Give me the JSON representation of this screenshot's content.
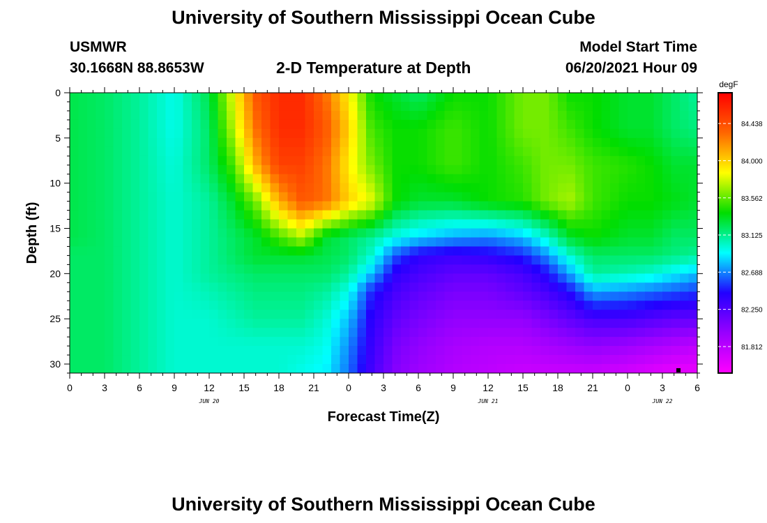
{
  "page": {
    "title_top": "University of Southern Mississippi Ocean Cube",
    "title_bottom": "University of Southern Mississippi Ocean Cube",
    "station": "USMWR",
    "coords": "30.1668N  88.8653W",
    "plot_title": "2-D Temperature at Depth",
    "model_label": "Model Start Time",
    "model_time": "06/20/2021 Hour 09"
  },
  "chart_data": {
    "type": "heatmap",
    "xlabel": "Forecast Time(Z)",
    "ylabel": "Depth (ft)",
    "unit": "degF",
    "x_range_hours": [
      0,
      54
    ],
    "y_range_ft": [
      0,
      31
    ],
    "y_reversed": true,
    "x_tick_labels": [
      "0",
      "3",
      "6",
      "9",
      "12",
      "15",
      "18",
      "21",
      "0",
      "3",
      "6",
      "9",
      "12",
      "15",
      "18",
      "21",
      "0",
      "3",
      "6"
    ],
    "y_ticks": [
      0,
      5,
      10,
      15,
      20,
      25,
      30
    ],
    "date_labels": [
      {
        "text": "JUN 20",
        "hour": 12
      },
      {
        "text": "JUN 21",
        "hour": 36
      },
      {
        "text": "JUN 22",
        "hour": 51
      }
    ],
    "colorbar": {
      "min": 81.5,
      "max": 84.8,
      "labels": [
        84.438,
        84.0,
        83.562,
        83.125,
        82.688,
        82.25,
        81.812
      ],
      "colors": [
        "#ff00ff",
        "#9900ff",
        "#2200ff",
        "#00ffff",
        "#00dd00",
        "#ffff00",
        "#ff6600",
        "#ff0000"
      ]
    },
    "depths_ft": [
      0,
      4,
      8,
      12,
      16,
      18,
      20,
      22,
      25,
      28,
      31
    ],
    "times_hr": [
      0,
      3,
      6,
      9,
      12,
      14,
      16,
      18,
      20,
      22,
      24,
      26,
      28,
      30,
      33,
      36,
      39,
      41,
      43,
      45,
      48,
      50,
      52,
      54
    ],
    "values": [
      [
        83.25,
        83.2,
        83.1,
        82.95,
        83.25,
        83.8,
        84.4,
        84.6,
        84.6,
        84.3,
        83.9,
        83.4,
        83.3,
        83.2,
        83.4,
        83.4,
        83.6,
        83.6,
        83.4,
        83.4,
        83.3,
        83.3,
        83.2,
        83.1
      ],
      [
        83.25,
        83.2,
        83.1,
        82.95,
        83.2,
        83.7,
        84.3,
        84.6,
        84.6,
        84.4,
        84.0,
        83.5,
        83.4,
        83.4,
        83.5,
        83.4,
        83.6,
        83.6,
        83.5,
        83.4,
        83.3,
        83.3,
        83.2,
        83.15
      ],
      [
        83.25,
        83.2,
        83.1,
        82.98,
        83.2,
        83.5,
        84.1,
        84.5,
        84.5,
        84.3,
        83.9,
        83.6,
        83.4,
        83.4,
        83.5,
        83.4,
        83.5,
        83.6,
        83.6,
        83.5,
        83.45,
        83.4,
        83.3,
        83.3
      ],
      [
        83.25,
        83.2,
        83.1,
        83.0,
        83.1,
        83.3,
        83.6,
        84.1,
        84.4,
        84.3,
        84.0,
        83.8,
        83.4,
        83.3,
        83.3,
        83.4,
        83.45,
        83.6,
        83.7,
        83.5,
        83.4,
        83.4,
        83.35,
        83.3
      ],
      [
        83.25,
        83.2,
        83.1,
        83.0,
        83.1,
        83.2,
        83.3,
        83.5,
        83.7,
        83.3,
        83.2,
        83.1,
        82.95,
        82.85,
        82.75,
        82.7,
        82.8,
        83.0,
        83.3,
        83.4,
        83.3,
        83.3,
        83.2,
        83.2
      ],
      [
        83.2,
        83.2,
        83.1,
        83.0,
        83.1,
        83.2,
        83.3,
        83.3,
        83.3,
        83.25,
        83.2,
        83.0,
        82.6,
        82.4,
        82.35,
        82.4,
        82.5,
        82.7,
        83.0,
        83.2,
        83.2,
        83.2,
        83.15,
        83.1
      ],
      [
        83.2,
        83.2,
        83.1,
        83.0,
        83.1,
        83.15,
        83.2,
        83.2,
        83.2,
        83.2,
        83.1,
        82.8,
        82.4,
        82.3,
        82.2,
        82.2,
        82.3,
        82.45,
        82.75,
        83.1,
        83.05,
        83.0,
        82.9,
        82.8
      ],
      [
        83.2,
        83.2,
        83.1,
        83.0,
        83.05,
        83.1,
        83.15,
        83.15,
        83.15,
        83.1,
        82.95,
        82.5,
        82.3,
        82.2,
        82.1,
        82.1,
        82.2,
        82.3,
        82.45,
        82.75,
        82.7,
        82.65,
        82.6,
        82.55
      ],
      [
        83.2,
        83.2,
        83.1,
        83.0,
        83.0,
        83.05,
        83.1,
        83.1,
        83.1,
        83.0,
        82.8,
        82.4,
        82.2,
        82.1,
        82.0,
        82.0,
        82.0,
        82.1,
        82.2,
        82.3,
        82.3,
        82.25,
        82.2,
        82.2
      ],
      [
        83.2,
        83.2,
        83.1,
        83.0,
        83.0,
        83.0,
        83.0,
        83.0,
        83.0,
        82.95,
        82.7,
        82.35,
        82.1,
        82.0,
        81.9,
        81.85,
        81.85,
        81.9,
        81.95,
        82.0,
        81.95,
        81.9,
        81.85,
        81.8
      ],
      [
        83.2,
        83.2,
        83.1,
        83.0,
        83.0,
        83.0,
        83.0,
        83.0,
        82.95,
        82.9,
        82.65,
        82.3,
        82.05,
        81.95,
        81.85,
        81.8,
        81.75,
        81.75,
        81.75,
        81.75,
        81.7,
        81.65,
        81.6,
        81.6
      ]
    ]
  }
}
